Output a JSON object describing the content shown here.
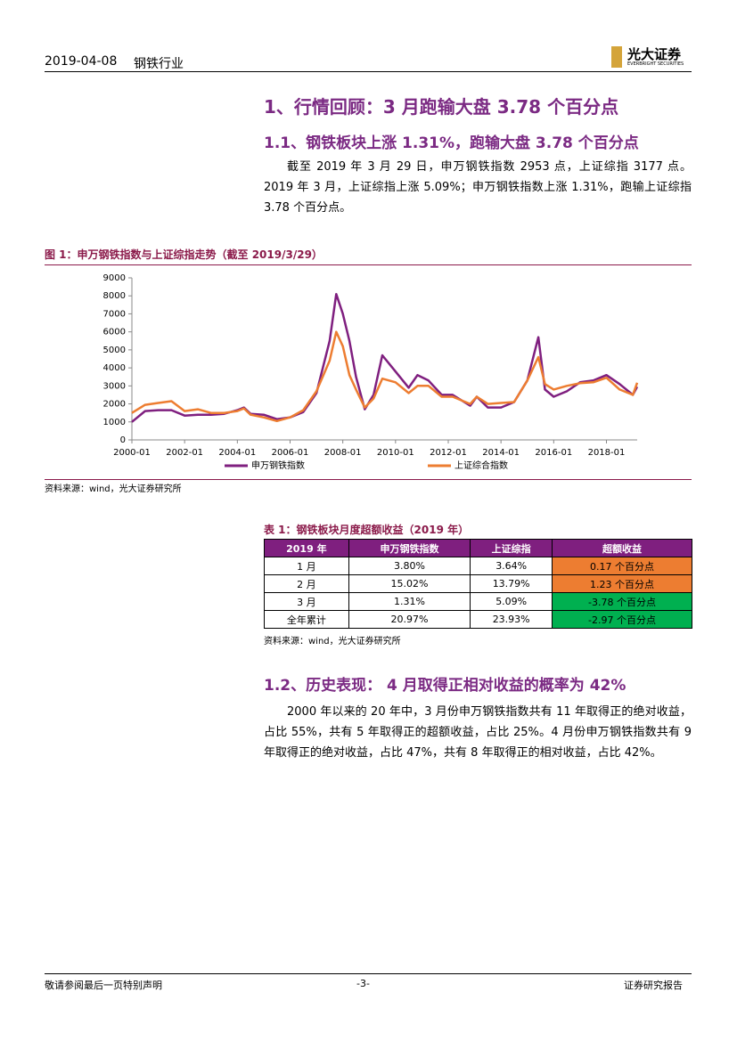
{
  "header": {
    "date": "2019-04-08",
    "industry": "钢铁行业",
    "logo": "光大证券",
    "logo_en": "EVERBRIGHT SECURITIES"
  },
  "heading1": "1、行情回顾：3 月跑输大盘 3.78 个百分点",
  "heading1_1": "1.1、钢铁板块上涨 1.31%，跑输大盘 3.78 个百分点",
  "para1": "截至 2019 年 3 月 29 日，申万钢铁指数 2953 点，上证综指 3177 点。2019 年 3 月，上证综指上涨 5.09%；申万钢铁指数上涨 1.31%，跑输上证综指 3.78 个百分点。",
  "figure_title": "图 1：申万钢铁指数与上证综指走势（截至 2019/3/29）",
  "chart_data": {
    "type": "line",
    "x": [
      "2000-01",
      "2000-07",
      "2001-01",
      "2001-07",
      "2002-01",
      "2002-07",
      "2003-01",
      "2003-07",
      "2004-01",
      "2004-04",
      "2004-07",
      "2005-01",
      "2005-07",
      "2006-01",
      "2006-07",
      "2007-01",
      "2007-07",
      "2007-10",
      "2008-01",
      "2008-04",
      "2008-07",
      "2008-11",
      "2009-03",
      "2009-07",
      "2010-01",
      "2010-07",
      "2010-11",
      "2011-04",
      "2011-10",
      "2012-03",
      "2012-11",
      "2013-02",
      "2013-07",
      "2014-01",
      "2014-07",
      "2015-01",
      "2015-06",
      "2015-09",
      "2016-01",
      "2016-07",
      "2017-01",
      "2017-07",
      "2018-01",
      "2018-07",
      "2019-01",
      "2019-03"
    ],
    "series": [
      {
        "name": "申万钢铁指数",
        "color": "#7f1f7f",
        "values": [
          1000,
          1600,
          1650,
          1650,
          1350,
          1400,
          1400,
          1450,
          1650,
          1800,
          1450,
          1400,
          1150,
          1250,
          1550,
          2600,
          5500,
          8100,
          7000,
          5500,
          3500,
          1700,
          2500,
          4700,
          3800,
          2900,
          3600,
          3300,
          2500,
          2500,
          1900,
          2400,
          1800,
          1800,
          2100,
          3300,
          5700,
          2800,
          2400,
          2700,
          3200,
          3300,
          3600,
          3100,
          2500,
          2953
        ]
      },
      {
        "name": "上证综合指数",
        "color": "#ed7d31",
        "values": [
          1500,
          1950,
          2050,
          2150,
          1600,
          1700,
          1500,
          1500,
          1600,
          1750,
          1400,
          1250,
          1050,
          1250,
          1650,
          2700,
          4400,
          6000,
          5200,
          3600,
          2800,
          1800,
          2300,
          3400,
          3200,
          2600,
          3000,
          3000,
          2400,
          2400,
          2000,
          2400,
          2000,
          2050,
          2100,
          3300,
          4600,
          3100,
          2800,
          3000,
          3150,
          3200,
          3450,
          2800,
          2500,
          3177
        ]
      }
    ],
    "xlim": [
      "2000-01",
      "2019-03"
    ],
    "xticks": [
      "2000-01",
      "2002-01",
      "2004-01",
      "2006-01",
      "2008-01",
      "2010-01",
      "2012-01",
      "2014-01",
      "2016-01",
      "2018-01"
    ],
    "ylim": [
      0,
      9000
    ],
    "yticks": [
      0,
      1000,
      2000,
      3000,
      4000,
      5000,
      6000,
      7000,
      8000,
      9000
    ],
    "grid": false
  },
  "figure_source": "资料来源：wind，光大证券研究所",
  "table_title": "表 1：钢铁板块月度超额收益（2019 年）",
  "table": {
    "header": [
      "2019 年",
      "申万钢铁指数",
      "上证综指",
      "超额收益"
    ],
    "rows": [
      [
        "1 月",
        "3.80%",
        "3.64%",
        "0.17 个百分点"
      ],
      [
        "2 月",
        "15.02%",
        "13.79%",
        "1.23 个百分点"
      ],
      [
        "3 月",
        "1.31%",
        "5.09%",
        "-3.78 个百分点"
      ],
      [
        "全年累计",
        "20.97%",
        "23.93%",
        "-2.97 个百分点"
      ]
    ]
  },
  "table_source": "资料来源：wind，光大证券研究所",
  "heading1_2": "1.2、历史表现： 4 月取得正相对收益的概率为 42%",
  "para2": "2000 年以来的 20 年中，3 月份申万钢铁指数共有 11 年取得正的绝对收益，占比 55%，共有 5 年取得正的超额收益，占比 25%。4 月份申万钢铁指数共有 9 年取得正的绝对收益，占比 47%，共有 8 年取得正的相对收益，占比 42%。",
  "footer": {
    "left": "敬请参阅最后一页特别声明",
    "page": "-3-",
    "right": "证券研究报告"
  }
}
